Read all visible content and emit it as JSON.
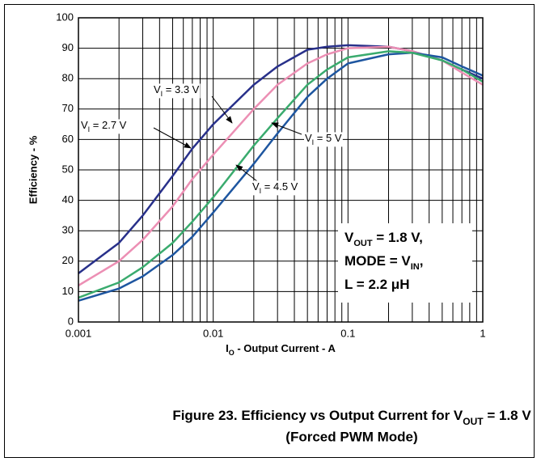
{
  "chart_data": {
    "type": "line",
    "title": [
      "Figure 23. Efficiency vs Output Current for V",
      "OUT",
      " = 1.8 V"
    ],
    "subtitle": "(Forced PWM Mode)",
    "x_label": [
      "I",
      "O",
      " - Output Current - A"
    ],
    "y_label": "Efficiency - %",
    "x": [
      0.001,
      0.002,
      0.003,
      0.005,
      0.007,
      0.01,
      0.02,
      0.03,
      0.05,
      0.07,
      0.1,
      0.2,
      0.3,
      0.5,
      0.7,
      1
    ],
    "series": [
      {
        "name": [
          "V",
          "I",
          " = 2.7 V"
        ],
        "color": "#28308a",
        "values": [
          16,
          26,
          35,
          48,
          57,
          65,
          78,
          84,
          89.5,
          90.5,
          91,
          90.5,
          89,
          86,
          83,
          80
        ]
      },
      {
        "name": [
          "V",
          "I",
          " = 3.3 V"
        ],
        "color": "#ec8fb4",
        "values": [
          12,
          20,
          27,
          38,
          47,
          55,
          70,
          78,
          85,
          88,
          90,
          90.5,
          89,
          86,
          82,
          78
        ]
      },
      {
        "name": [
          "V",
          "I",
          " = 4.5 V"
        ],
        "color": "#1e56a0",
        "values": [
          7,
          11,
          15,
          22,
          28,
          36,
          52,
          62,
          74,
          80,
          85,
          88,
          88.5,
          87,
          84,
          81
        ]
      },
      {
        "name": [
          "V",
          "I",
          " = 5 V"
        ],
        "color": "#3aab6e",
        "values": [
          8,
          13,
          18,
          26,
          33,
          41,
          58,
          67,
          78,
          83,
          87,
          89,
          88.5,
          86,
          83,
          79
        ]
      }
    ],
    "conditions": [
      [
        "V",
        "OUT",
        " = 1.8 V,"
      ],
      [
        "MODE = V",
        "IN",
        ","
      ],
      [
        "L = 2.2 μH"
      ]
    ],
    "xlim": [
      0.001,
      1
    ],
    "xticks": [
      0.001,
      0.01,
      0.1,
      1
    ],
    "xminor": [
      0.002,
      0.003,
      0.004,
      0.005,
      0.006,
      0.007,
      0.008,
      0.009,
      0.02,
      0.03,
      0.04,
      0.05,
      0.06,
      0.07,
      0.08,
      0.09,
      0.2,
      0.3,
      0.4,
      0.5,
      0.6,
      0.7,
      0.8,
      0.9
    ],
    "xscale": "log",
    "ylim": [
      0,
      100
    ],
    "yticks": [
      0,
      10,
      20,
      30,
      40,
      50,
      60,
      70,
      80,
      90,
      100
    ],
    "grid": true
  }
}
